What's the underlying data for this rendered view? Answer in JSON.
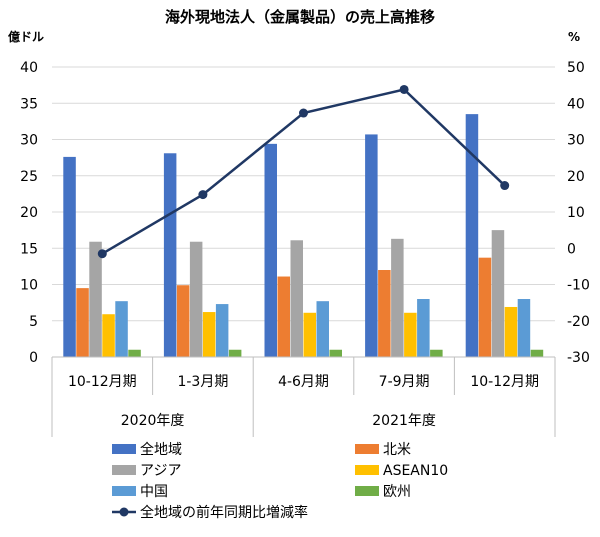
{
  "chart_data": {
    "type": "bar",
    "title": "海外現地法人（金属製品）の売上高推移",
    "ylabel_left": "億ドル",
    "ylabel_right": "%",
    "ylim_left": [
      0,
      40
    ],
    "ylim_right": [
      -30,
      50
    ],
    "left_ticks": [
      "0",
      "5",
      "10",
      "15",
      "20",
      "25",
      "30",
      "35",
      "40"
    ],
    "right_ticks": [
      "-30",
      "-20",
      "-10",
      "0",
      "10",
      "20",
      "30",
      "40",
      "50"
    ],
    "categories": [
      "10-12月期",
      "1-3月期",
      "4-6月期",
      "7-9月期",
      "10-12月期"
    ],
    "groups": [
      {
        "label": "2020年度",
        "span": [
          0,
          1
        ]
      },
      {
        "label": "2021年度",
        "span": [
          2,
          4
        ]
      }
    ],
    "series": [
      {
        "name": "全地域",
        "color": "#4472C4",
        "values": [
          27.6,
          28.1,
          29.4,
          30.7,
          33.5
        ]
      },
      {
        "name": "北米",
        "color": "#ED7D31",
        "values": [
          9.5,
          9.9,
          11.1,
          12.0,
          13.7
        ]
      },
      {
        "name": "アジア",
        "color": "#A5A5A5",
        "values": [
          15.9,
          15.9,
          16.1,
          16.3,
          17.5
        ]
      },
      {
        "name": "ASEAN10",
        "color": "#FFC000",
        "values": [
          5.9,
          6.2,
          6.1,
          6.1,
          6.9
        ]
      },
      {
        "name": "中国",
        "color": "#5B9BD5",
        "values": [
          7.7,
          7.3,
          7.7,
          8.0,
          8.0
        ]
      },
      {
        "name": "欧州",
        "color": "#70AD47",
        "values": [
          1.0,
          1.0,
          1.0,
          1.0,
          1.0
        ]
      }
    ],
    "line_series": {
      "name": "全地域の前年同期比増減率",
      "color": "#203864",
      "axis": "right",
      "values": [
        -1.5,
        14.8,
        37.3,
        43.8,
        17.3
      ]
    },
    "grid": true,
    "legend_position": "bottom"
  }
}
